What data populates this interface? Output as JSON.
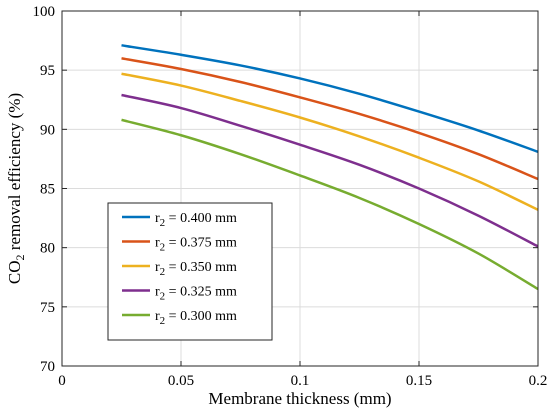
{
  "chart_data": {
    "type": "line",
    "xlabel": "Membrane thickness (mm)",
    "ylabel": {
      "prefix": "CO",
      "sub": "2",
      "suffix": " removal efficiency (%)"
    },
    "xlim": [
      0,
      0.2
    ],
    "ylim": [
      70,
      100
    ],
    "xticks": [
      0,
      0.05,
      0.1,
      0.15,
      0.2
    ],
    "xtick_labels": [
      "0",
      "0.05",
      "0.1",
      "0.15",
      "0.2"
    ],
    "yticks": [
      70,
      75,
      80,
      85,
      90,
      95,
      100
    ],
    "ytick_labels": [
      "70",
      "75",
      "80",
      "85",
      "90",
      "95",
      "100"
    ],
    "grid": true,
    "legend_position": "lower-left",
    "x": [
      0.025,
      0.05,
      0.075,
      0.1,
      0.125,
      0.15,
      0.175,
      0.2
    ],
    "series": [
      {
        "name_prefix": "r",
        "name_sub": "2",
        "name_suffix": " = 0.400 mm",
        "color": "#0072BD",
        "values": [
          97.1,
          96.3,
          95.4,
          94.3,
          93.0,
          91.5,
          89.9,
          88.1
        ]
      },
      {
        "name_prefix": "r",
        "name_sub": "2",
        "name_suffix": " = 0.375 mm",
        "color": "#D95319",
        "values": [
          96.0,
          95.1,
          94.0,
          92.7,
          91.3,
          89.7,
          87.9,
          85.8
        ]
      },
      {
        "name_prefix": "r",
        "name_sub": "2",
        "name_suffix": " = 0.350 mm",
        "color": "#EDB120",
        "values": [
          94.7,
          93.7,
          92.4,
          91.0,
          89.4,
          87.6,
          85.6,
          83.2
        ]
      },
      {
        "name_prefix": "r",
        "name_sub": "2",
        "name_suffix": " = 0.325 mm",
        "color": "#7E2F8E",
        "values": [
          92.9,
          91.8,
          90.3,
          88.7,
          87.0,
          85.0,
          82.7,
          80.1
        ]
      },
      {
        "name_prefix": "r",
        "name_sub": "2",
        "name_suffix": " = 0.300 mm",
        "color": "#77AC30",
        "values": [
          90.8,
          89.5,
          87.9,
          86.1,
          84.2,
          82.0,
          79.5,
          76.5
        ]
      }
    ]
  }
}
